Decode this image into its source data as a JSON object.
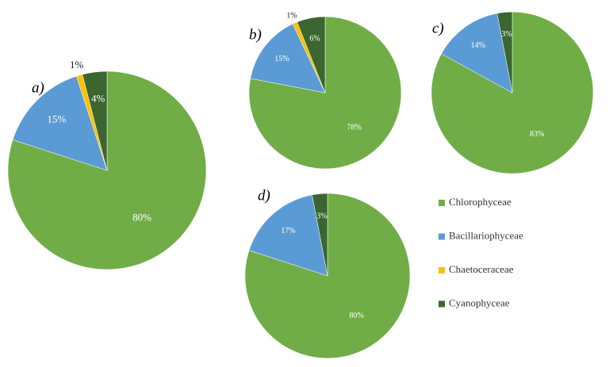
{
  "chart_data": [
    {
      "type": "pie",
      "label": "a)",
      "values": [
        80,
        15,
        1,
        4
      ],
      "value_labels": [
        "80%",
        "15%",
        "1%",
        "4%"
      ]
    },
    {
      "type": "pie",
      "label": "b)",
      "values": [
        78,
        15,
        1,
        6
      ],
      "value_labels": [
        "78%",
        "15%",
        "1%",
        "6%"
      ]
    },
    {
      "type": "pie",
      "label": "c)",
      "values": [
        83,
        14,
        null,
        3
      ],
      "value_labels": [
        "83%",
        "14%",
        null,
        "3%"
      ]
    },
    {
      "type": "pie",
      "label": "d)",
      "values": [
        80,
        17,
        null,
        3
      ],
      "value_labels": [
        "80%",
        "17%",
        null,
        "3%"
      ]
    }
  ],
  "legend": {
    "entries": [
      {
        "name": "Chlorophyceae",
        "color": "#70ad47"
      },
      {
        "name": "Bacillariophyceae",
        "color": "#5b9bd5"
      },
      {
        "name": "Chaetoceraceae",
        "color": "#ffc000"
      },
      {
        "name": "Cyanophyceae",
        "color": "#3b6630"
      }
    ]
  }
}
